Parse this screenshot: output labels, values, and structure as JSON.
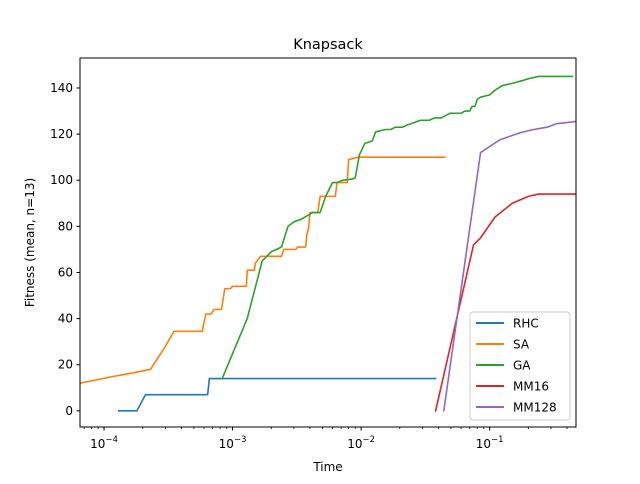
{
  "chart_data": {
    "type": "line",
    "title": "Knapsack",
    "xlabel": "Time",
    "ylabel": "Fitness (mean, n=13)",
    "xscale": "log",
    "xlim": [
      6.5e-05,
      0.47
    ],
    "ylim": [
      -7,
      153
    ],
    "x_ticks": [
      {
        "value": 0.0001,
        "base": "10",
        "exp": "−4"
      },
      {
        "value": 0.001,
        "base": "10",
        "exp": "−3"
      },
      {
        "value": 0.01,
        "base": "10",
        "exp": "−2"
      },
      {
        "value": 0.1,
        "base": "10",
        "exp": "−1"
      }
    ],
    "y_ticks": [
      0,
      20,
      40,
      60,
      80,
      100,
      120,
      140
    ],
    "legend_position": "lower-right",
    "series": [
      {
        "name": "RHC",
        "color": "#1f77b4",
        "points": [
          [
            0.00013,
            0
          ],
          [
            0.00018,
            0
          ],
          [
            0.00021,
            7
          ],
          [
            0.0003,
            7
          ],
          [
            0.0004,
            7
          ],
          [
            0.0005,
            7
          ],
          [
            0.00064,
            7
          ],
          [
            0.00066,
            14
          ],
          [
            0.001,
            14
          ],
          [
            0.003,
            14
          ],
          [
            0.01,
            14
          ],
          [
            0.02,
            14
          ],
          [
            0.038,
            14
          ]
        ]
      },
      {
        "name": "SA",
        "color": "#ff7f0e",
        "points": [
          [
            6.5e-05,
            12
          ],
          [
            0.00012,
            15
          ],
          [
            0.00017,
            16.5
          ],
          [
            0.00023,
            18
          ],
          [
            0.0003,
            28
          ],
          [
            0.00035,
            34.5
          ],
          [
            0.0005,
            34.5
          ],
          [
            0.00058,
            34.5
          ],
          [
            0.00062,
            42
          ],
          [
            0.00068,
            42
          ],
          [
            0.00072,
            44
          ],
          [
            0.00082,
            44
          ],
          [
            0.00087,
            53
          ],
          [
            0.00096,
            53
          ],
          [
            0.001,
            54
          ],
          [
            0.00128,
            54
          ],
          [
            0.0013,
            61
          ],
          [
            0.00148,
            61
          ],
          [
            0.0015,
            64
          ],
          [
            0.00165,
            67
          ],
          [
            0.0022,
            67
          ],
          [
            0.0024,
            67
          ],
          [
            0.0025,
            70
          ],
          [
            0.0031,
            70
          ],
          [
            0.0032,
            71
          ],
          [
            0.0037,
            71
          ],
          [
            0.0038,
            77
          ],
          [
            0.0039,
            79
          ],
          [
            0.004,
            86
          ],
          [
            0.0046,
            86
          ],
          [
            0.0048,
            93
          ],
          [
            0.0061,
            93
          ],
          [
            0.0063,
            93
          ],
          [
            0.0065,
            99
          ],
          [
            0.0078,
            99
          ],
          [
            0.008,
            109
          ],
          [
            0.0095,
            110
          ],
          [
            0.02,
            110
          ],
          [
            0.045,
            110
          ]
        ]
      },
      {
        "name": "GA",
        "color": "#2ca02c",
        "points": [
          [
            0.00083,
            14
          ],
          [
            0.0013,
            40
          ],
          [
            0.0017,
            65
          ],
          [
            0.002,
            69
          ],
          [
            0.0024,
            71
          ],
          [
            0.0027,
            80
          ],
          [
            0.003,
            82
          ],
          [
            0.0034,
            83
          ],
          [
            0.0042,
            86
          ],
          [
            0.0048,
            86
          ],
          [
            0.0053,
            93
          ],
          [
            0.006,
            99
          ],
          [
            0.0065,
            99
          ],
          [
            0.0072,
            100
          ],
          [
            0.0085,
            100.5
          ],
          [
            0.009,
            101
          ],
          [
            0.0097,
            111
          ],
          [
            0.0107,
            116
          ],
          [
            0.0122,
            117
          ],
          [
            0.013,
            121
          ],
          [
            0.0155,
            122
          ],
          [
            0.017,
            122
          ],
          [
            0.0185,
            123
          ],
          [
            0.021,
            123
          ],
          [
            0.023,
            124
          ],
          [
            0.029,
            126
          ],
          [
            0.034,
            126
          ],
          [
            0.037,
            127
          ],
          [
            0.042,
            127
          ],
          [
            0.049,
            129
          ],
          [
            0.06,
            129
          ],
          [
            0.064,
            130
          ],
          [
            0.07,
            130
          ],
          [
            0.073,
            132
          ],
          [
            0.077,
            132
          ],
          [
            0.08,
            135
          ],
          [
            0.085,
            136
          ],
          [
            0.1,
            137
          ],
          [
            0.11,
            139
          ],
          [
            0.125,
            141
          ],
          [
            0.15,
            142
          ],
          [
            0.175,
            143
          ],
          [
            0.2,
            144
          ],
          [
            0.24,
            145
          ],
          [
            0.3,
            145
          ],
          [
            0.4,
            145
          ],
          [
            0.44,
            145
          ]
        ]
      },
      {
        "name": "MM16",
        "color": "#d62728",
        "points": [
          [
            0.038,
            0
          ],
          [
            0.075,
            72
          ],
          [
            0.085,
            75
          ],
          [
            0.11,
            84
          ],
          [
            0.15,
            90
          ],
          [
            0.2,
            93
          ],
          [
            0.24,
            94
          ],
          [
            0.3,
            94
          ],
          [
            0.47,
            94
          ]
        ]
      },
      {
        "name": "MM128",
        "color": "#9467bd",
        "points": [
          [
            0.044,
            0
          ],
          [
            0.085,
            112
          ],
          [
            0.12,
            117.5
          ],
          [
            0.17,
            120.5
          ],
          [
            0.22,
            122
          ],
          [
            0.28,
            123
          ],
          [
            0.33,
            124.5
          ],
          [
            0.4,
            125
          ],
          [
            0.47,
            125.5
          ]
        ]
      }
    ]
  }
}
